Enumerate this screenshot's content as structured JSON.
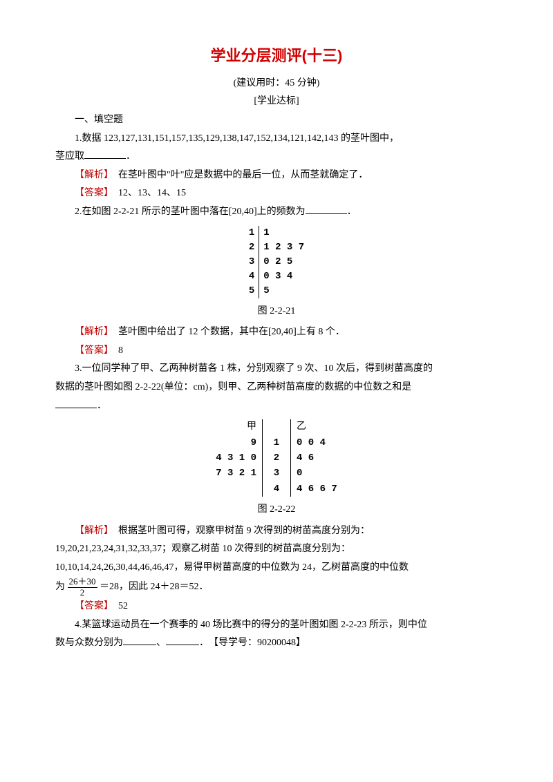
{
  "title": "学业分层测评(十三)",
  "time_note": "(建议用时：45 分钟)",
  "section_tag": "[学业达标]",
  "section1": "一、填空题",
  "q1": {
    "text_a": "1.数据 123,127,131,151,157,135,129,138,147,152,134,121,142,143 的茎叶图中，",
    "text_b": "茎应取",
    "text_c": "．",
    "analysis_label": "【解析】",
    "analysis": "　在茎叶图中\"叶\"应是数据中的最后一位，从而茎就确定了．",
    "answer_label": "【答案】",
    "answer": "　12、13、14、15"
  },
  "q2": {
    "text_a": "2.在如图 2-2-21 所示的茎叶图中落在[20,40]上的频数为",
    "text_b": "．",
    "stemleaf": {
      "rows": [
        {
          "stem": "1",
          "leaf": "1"
        },
        {
          "stem": "2",
          "leaf": "1 2 3 7"
        },
        {
          "stem": "3",
          "leaf": "0 2 5"
        },
        {
          "stem": "4",
          "leaf": "0 3 4"
        },
        {
          "stem": "5",
          "leaf": "5"
        }
      ]
    },
    "caption": "图 2-2-21",
    "analysis_label": "【解析】",
    "analysis": "　茎叶图中给出了 12 个数据，其中在[20,40]上有 8 个．",
    "answer_label": "【答案】",
    "answer": "　8"
  },
  "q3": {
    "text_a": "3.一位同学种了甲、乙两种树苗各 1 株，分别观察了 9 次、10 次后，得到树苗高度的",
    "text_b": "数据的茎叶图如图 2-2-22(单位：cm)，则甲、乙两种树苗高度的数据的中位数之和是",
    "text_c": "．",
    "back2back": {
      "left_hdr": "甲",
      "right_hdr": "乙",
      "rows": [
        {
          "l": "9",
          "m": "1",
          "r": "0 0 4"
        },
        {
          "l": "4 3 1 0",
          "m": "2",
          "r": "4 6"
        },
        {
          "l": "7 3 2 1",
          "m": "3",
          "r": "0"
        },
        {
          "l": "",
          "m": "4",
          "r": "4 6 6 7"
        }
      ]
    },
    "caption": "图 2-2-22",
    "analysis_label": "【解析】",
    "analysis_a": "　根据茎叶图可得，观察甲树苗 9 次得到的树苗高度分别为：",
    "analysis_b": "19,20,21,23,24,31,32,33,37；观察乙树苗 10 次得到的树苗高度分别为：",
    "analysis_c": "10,10,14,24,26,30,44,46,46,47，易得甲树苗高度的中位数为 24，乙树苗高度的中位数",
    "analysis_d_pre": "为 ",
    "frac_num": "26＋30",
    "frac_den": "2",
    "analysis_d_post": " ＝28，因此 24＋28＝52．",
    "answer_label": "【答案】",
    "answer": "　52"
  },
  "q4": {
    "text_a": "4.某篮球运动员在一个赛季的 40 场比赛中的得分的茎叶图如图 2-2-23 所示，则中位",
    "text_b": "数与众数分别为",
    "text_c": "、",
    "text_d": "．　【导学号：90200048】"
  }
}
